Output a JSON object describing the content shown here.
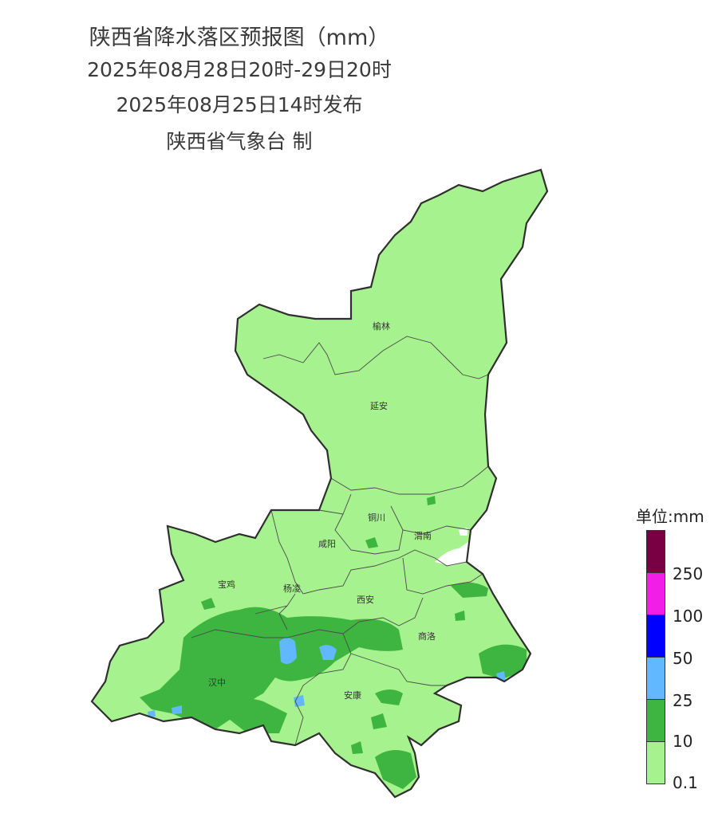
{
  "title": {
    "line1": "陕西省降水落区预报图（mm）",
    "line2": "2025年08月28日20时-29日20时",
    "line3": "2025年08月25日14时发布",
    "line4": "陕西省气象台 制"
  },
  "cities": {
    "yulin": "榆林",
    "yanan": "延安",
    "tongchuan": "铜川",
    "xianyang": "咸阳",
    "weinan": "渭南",
    "baoji": "宝鸡",
    "yangling": "杨凌",
    "xian": "西安",
    "shangluo": "商洛",
    "hanzhong": "汉中",
    "ankang": "安康"
  },
  "legend": {
    "title": "单位:mm",
    "colors": {
      "c250": "#7a0044",
      "c100": "#f01ee6",
      "c50": "#0000ff",
      "c25": "#61b8ff",
      "c10": "#3db540",
      "c01": "#a6f28f"
    },
    "labels": [
      "250",
      "100",
      "50",
      "25",
      "10",
      "0.1"
    ]
  }
}
